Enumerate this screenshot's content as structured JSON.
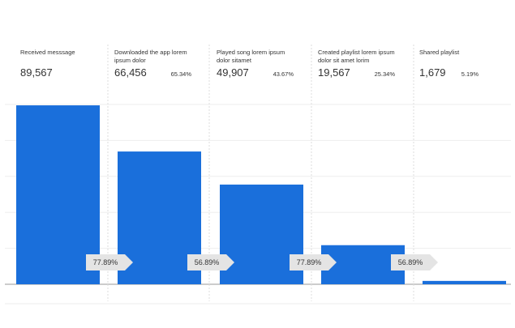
{
  "chart_data": {
    "type": "funnel",
    "categories": [
      "Received messsage",
      "Downloaded the app lorem ipsum dolor",
      "Played song lorem ipsum dolor sitamet",
      "Created playlist lorem ipsum dolor sit amet lorim",
      "Shared playlist"
    ],
    "values": [
      89567,
      66456,
      49907,
      19567,
      1679
    ],
    "value_labels": [
      "89,567",
      "66,456",
      "49,907",
      "19,567",
      "1,679"
    ],
    "percents": [
      null,
      65.34,
      43.67,
      25.34,
      5.19
    ],
    "percent_labels": [
      null,
      "65.34%",
      "43.67%",
      "25.34%",
      "5.19%"
    ],
    "conversions": [
      {
        "value": 77.89,
        "label": "77.89%"
      },
      {
        "value": 56.89,
        "label": "56.89%"
      },
      {
        "value": 77.89,
        "label": "77.89%"
      },
      {
        "value": 56.89,
        "label": "56.89%"
      }
    ],
    "color": "#1a6fdb",
    "ylim": [
      0,
      90000
    ],
    "yticks": [
      0,
      18000,
      36000,
      54000,
      72000,
      90000
    ],
    "grid": true
  }
}
